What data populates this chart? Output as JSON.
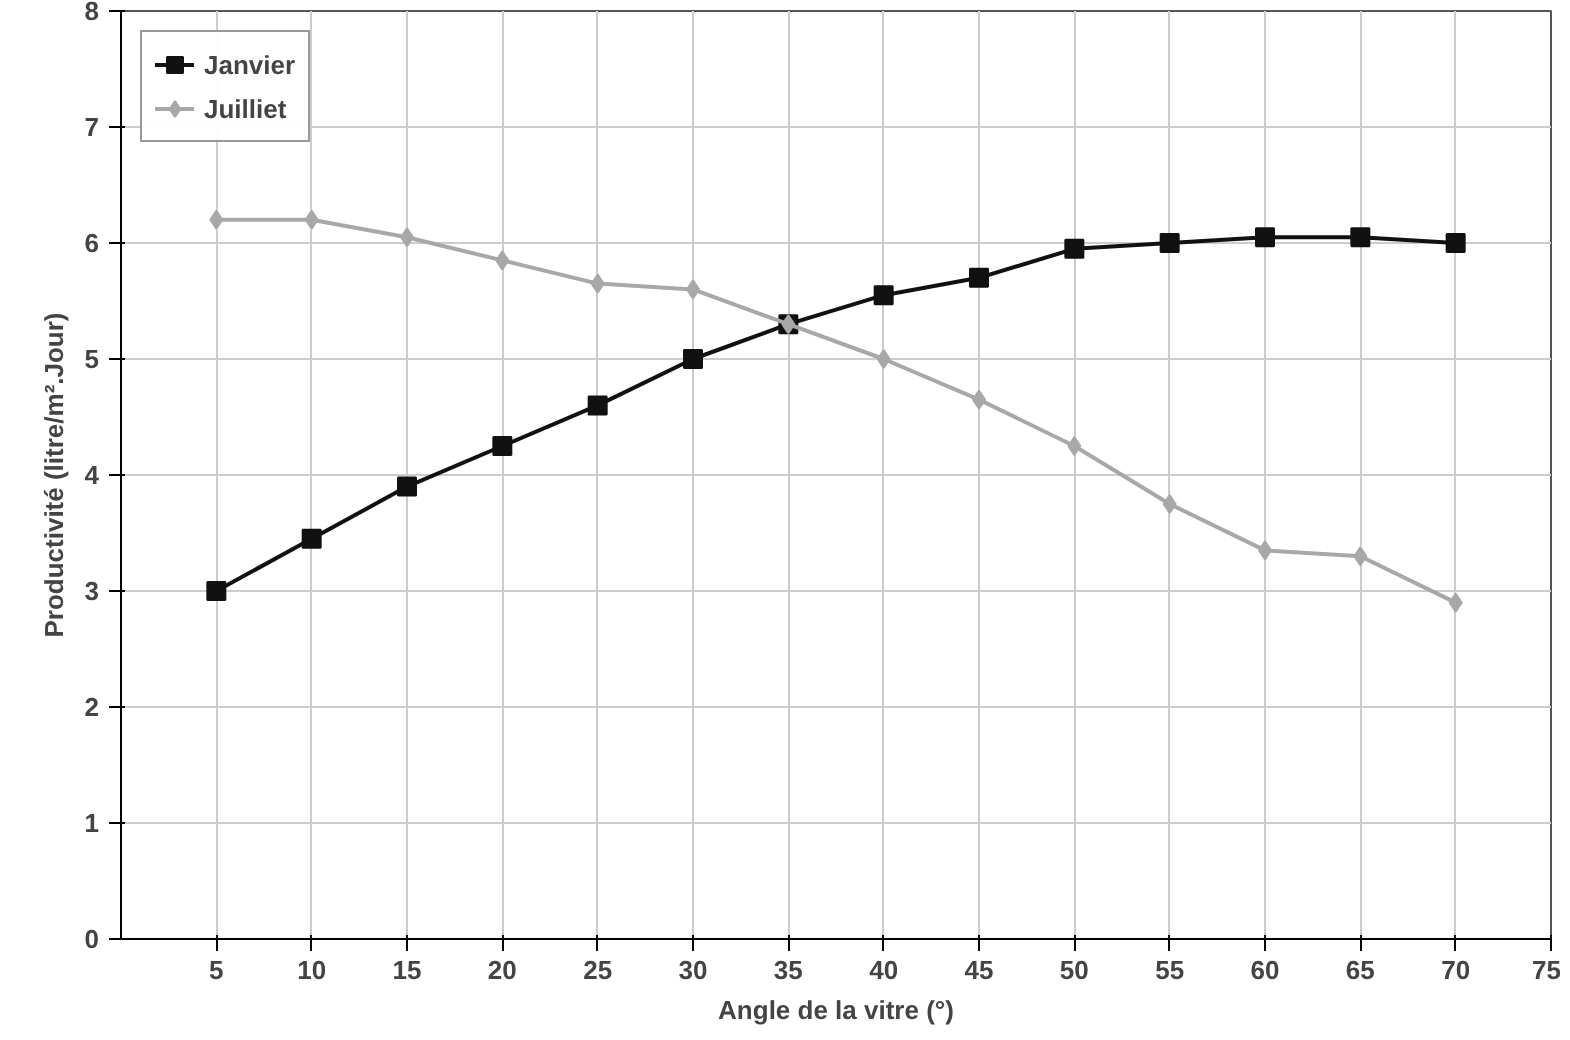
{
  "chart_data": {
    "type": "line",
    "xlabel": "Angle de la vitre (°)",
    "ylabel": "Productivité (litre/m².Jour)",
    "x": [
      5,
      10,
      15,
      20,
      25,
      30,
      35,
      40,
      45,
      50,
      55,
      60,
      65,
      70
    ],
    "series": [
      {
        "name": "Janvier",
        "color": "#111111",
        "marker": "square",
        "values": [
          3.0,
          3.45,
          3.9,
          4.25,
          4.6,
          5.0,
          5.3,
          5.55,
          5.7,
          5.95,
          6.0,
          6.05,
          6.05,
          6.0
        ]
      },
      {
        "name": "Juilliet",
        "color": "#a8a8a8",
        "marker": "diamond",
        "values": [
          6.2,
          6.2,
          6.05,
          5.85,
          5.65,
          5.6,
          5.3,
          5.0,
          4.65,
          4.25,
          3.75,
          3.35,
          3.3,
          2.9
        ]
      }
    ],
    "xlim": [
      0,
      75
    ],
    "xticks": [
      5,
      10,
      15,
      20,
      25,
      30,
      35,
      40,
      45,
      50,
      55,
      60,
      65,
      70,
      75
    ],
    "ylim": [
      0,
      8
    ],
    "yticks": [
      0,
      1,
      2,
      3,
      4,
      5,
      6,
      7,
      8
    ],
    "grid": true,
    "legend": "top left",
    "line_style": "solid"
  }
}
